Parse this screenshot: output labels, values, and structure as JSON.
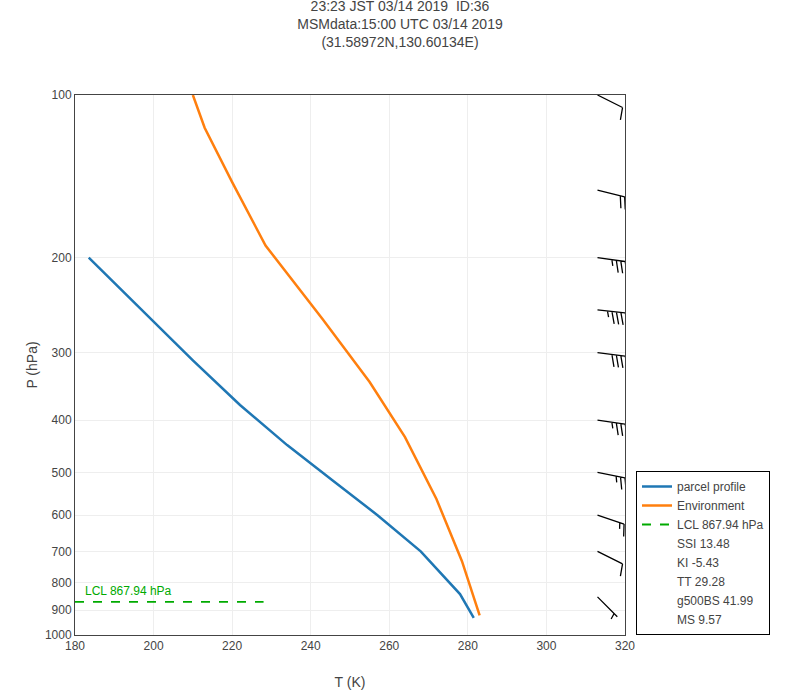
{
  "chart_data": {
    "type": "line",
    "title": "23:23 JST 03/14 2019  ID:36\nMSMdata:15:00 UTC 03/14 2019\n(31.58972N,130.60134E)",
    "xlabel": "T (K)",
    "ylabel": "P (hPa)",
    "xlim": [
      180,
      320
    ],
    "ylim": [
      1000,
      100
    ],
    "xticks": [
      180,
      200,
      220,
      240,
      260,
      280,
      300,
      320
    ],
    "yticks": [
      100,
      200,
      300,
      400,
      500,
      600,
      700,
      800,
      900,
      1000
    ],
    "log": "y",
    "grid": true,
    "legend": "lower right",
    "series": [
      {
        "name": "parcel profile",
        "color": "#1f77b4",
        "x": [
          183.5,
          197.0,
          210.0,
          222.0,
          234.0,
          246.0,
          257.0,
          268.0,
          278.0,
          281.5
        ],
        "values": [
          200,
          250,
          310,
          375,
          445,
          520,
          600,
          700,
          840,
          930
        ]
      },
      {
        "name": "Environment",
        "color": "#ff7f0e",
        "x": [
          210.0,
          213.0,
          220.0,
          228.5,
          243.0,
          255.0,
          264.0,
          272.0,
          278.5,
          283.0
        ],
        "values": [
          100,
          115,
          145,
          190,
          260,
          340,
          430,
          560,
          730,
          920
        ]
      },
      {
        "name": "LCL 867.94 hPa",
        "color": "#00aa00",
        "line_style": "dashed",
        "x": [
          180,
          228
        ],
        "values": [
          867.94,
          867.94
        ]
      },
      {
        "type": "barbs",
        "color": "black",
        "x": [
          313,
          313,
          313,
          313,
          313,
          313,
          313,
          313,
          313,
          313
        ],
        "values": [
          100,
          150,
          200,
          250,
          300,
          400,
          500,
          600,
          700,
          850
        ],
        "u": [
          -10,
          -20,
          -35,
          -45,
          -40,
          -35,
          -25,
          -15,
          -10,
          -5
        ],
        "v": [
          5,
          5,
          5,
          5,
          5,
          5,
          5,
          5,
          5,
          5
        ]
      }
    ],
    "annotations": [
      {
        "text": "LCL 867.94 hPa",
        "x": 180,
        "y": 867.94,
        "color": "#00aa00"
      }
    ],
    "index_lines": [
      "SSI 13.48",
      "KI -5.43",
      "TT 29.28",
      "g500BS 41.99",
      "MS 9.57"
    ]
  }
}
